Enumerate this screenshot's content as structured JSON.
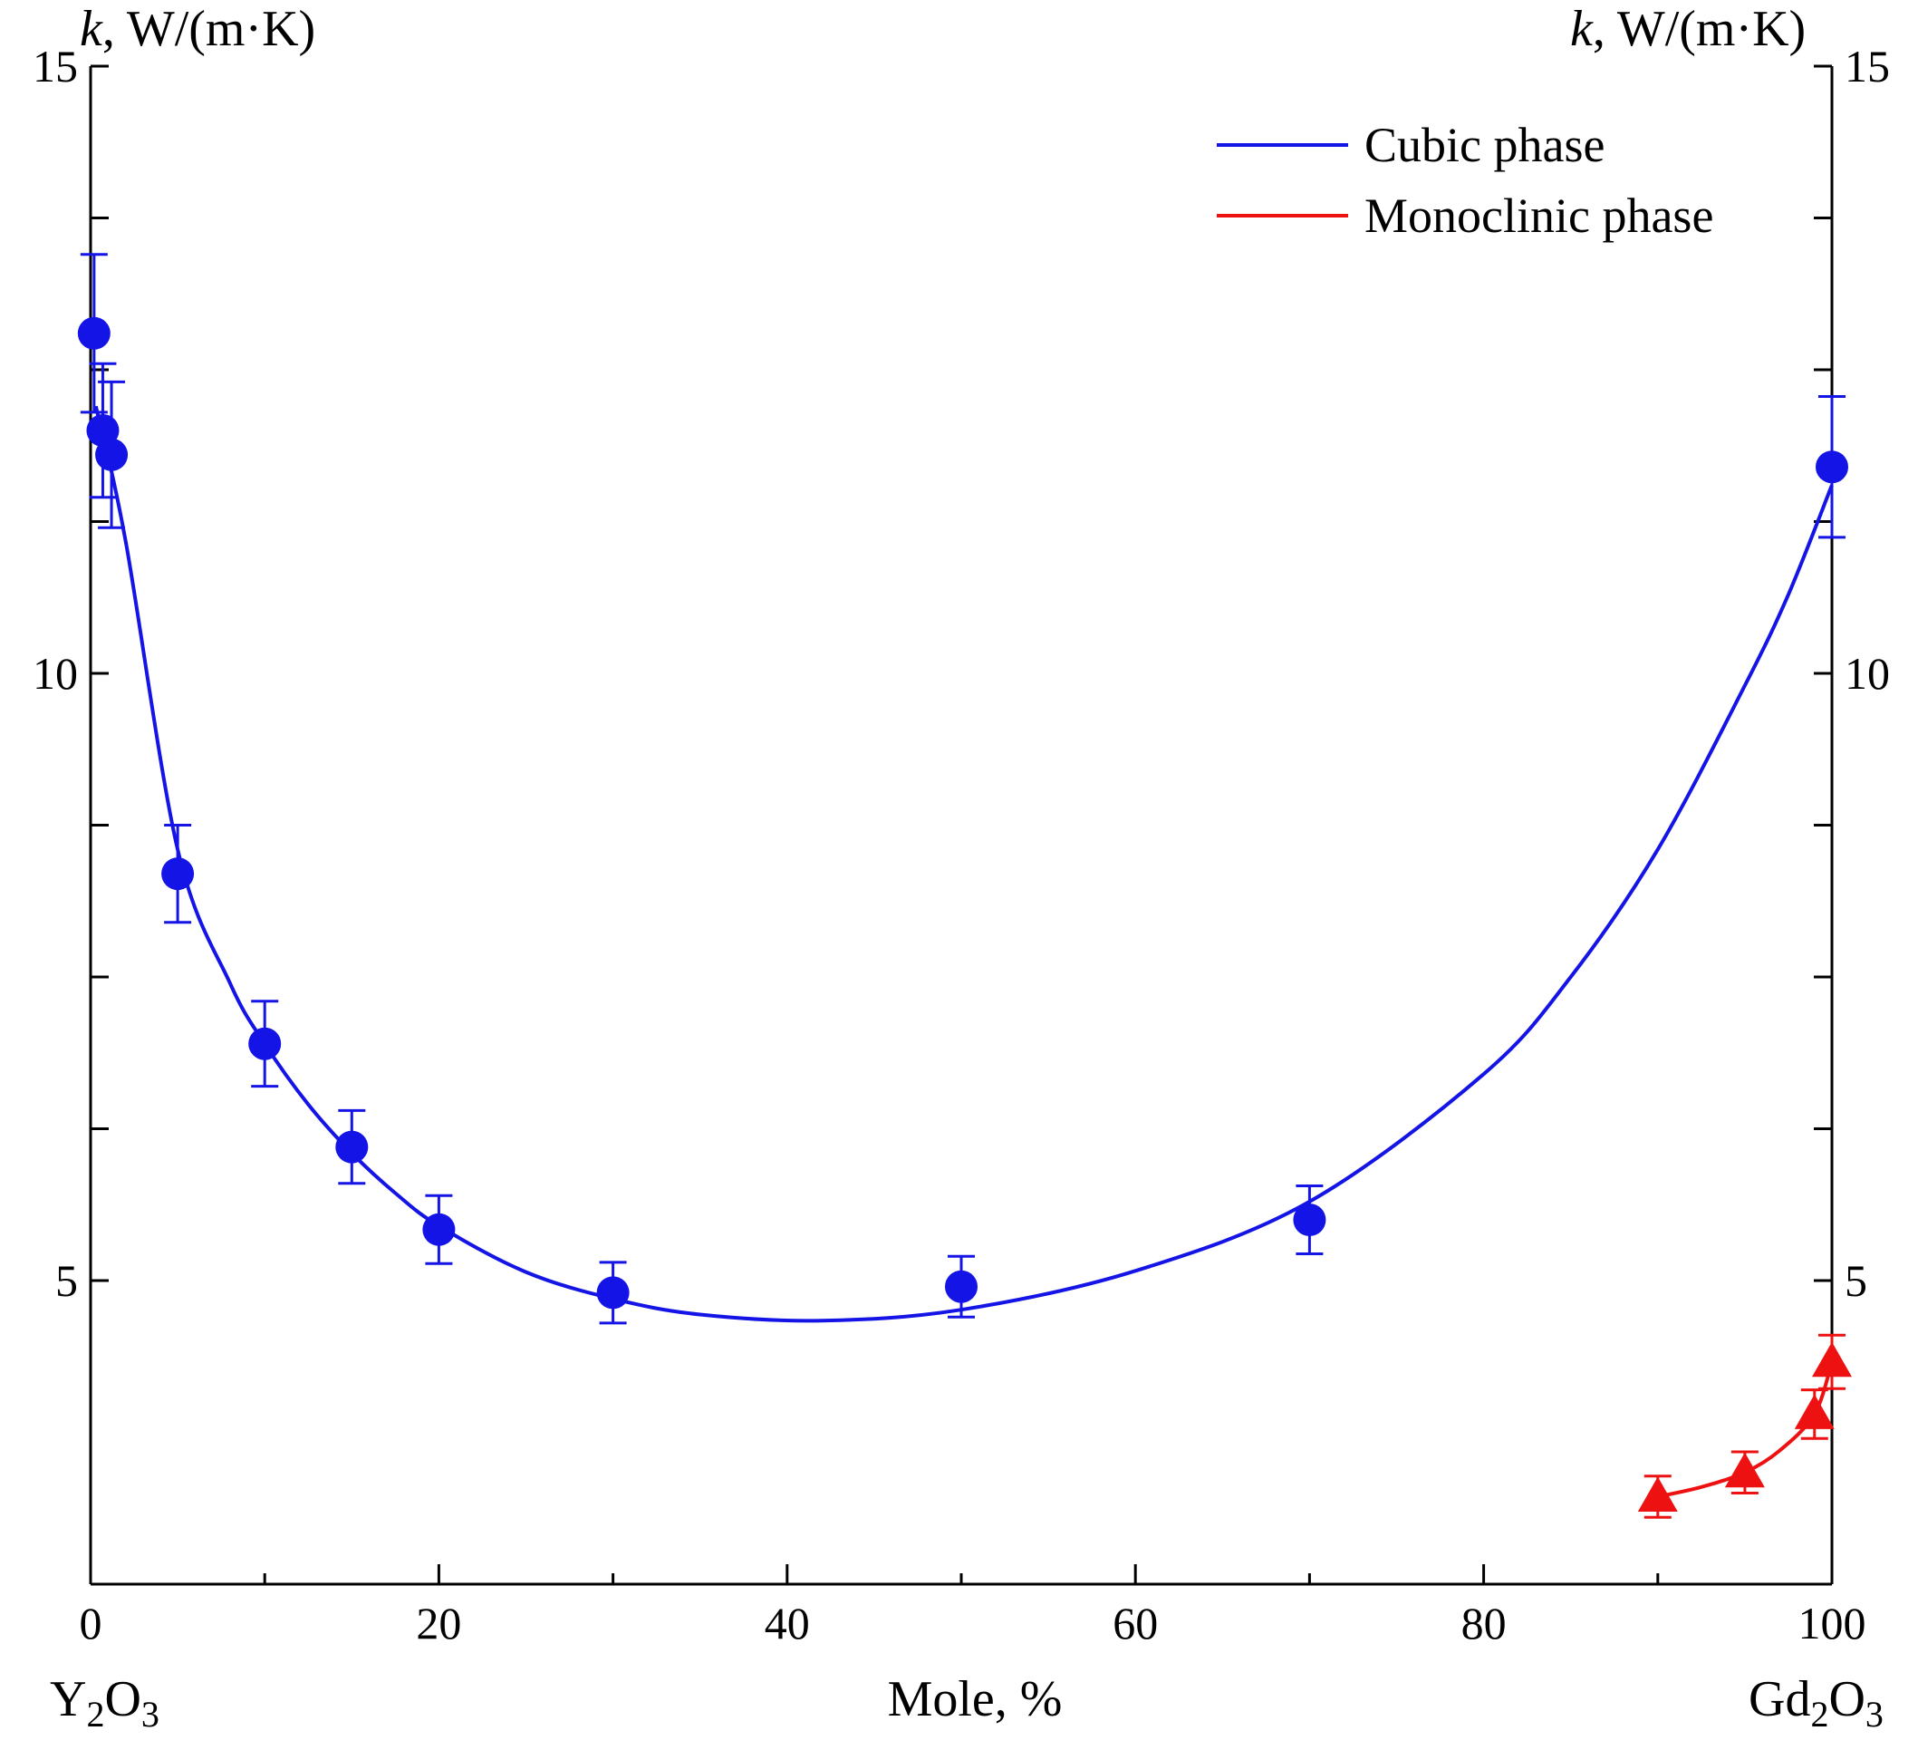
{
  "chart_data": {
    "type": "scatter",
    "title": "",
    "xlabel": "Mole, %",
    "x_left_label": {
      "base": "Y",
      "sub1": "2",
      "mid": "O",
      "sub2": "3"
    },
    "x_right_label": {
      "base": "Gd",
      "sub1": "2",
      "mid": "O",
      "sub2": "3"
    },
    "ylabel_left": {
      "italic": "k",
      "rest": ", W/(m·K)"
    },
    "ylabel_right": {
      "italic": "k",
      "rest": ", W/(m·K)"
    },
    "xlim": [
      0,
      100
    ],
    "ylim": [
      2.5,
      15
    ],
    "x_ticks": [
      0,
      20,
      40,
      60,
      80,
      100
    ],
    "x_minor_ticks": [
      10,
      30,
      50,
      70,
      90
    ],
    "y_ticks_labeled": [
      5,
      10,
      15
    ],
    "y_ticks_all": [
      5,
      6.25,
      7.5,
      8.75,
      10,
      11.25,
      12.5,
      13.75,
      15
    ],
    "legend": {
      "position": "top-right"
    },
    "series": [
      {
        "name": "Cubic phase",
        "color": "#1414e6",
        "marker": "circle",
        "points": [
          {
            "x": 0.2,
            "y": 12.8,
            "err": 0.65
          },
          {
            "x": 0.7,
            "y": 12.0,
            "err": 0.55
          },
          {
            "x": 1.2,
            "y": 11.8,
            "err": 0.6
          },
          {
            "x": 5,
            "y": 8.35,
            "err": 0.4
          },
          {
            "x": 10,
            "y": 6.95,
            "err": 0.35
          },
          {
            "x": 15,
            "y": 6.1,
            "err": 0.3
          },
          {
            "x": 20,
            "y": 5.42,
            "err": 0.28
          },
          {
            "x": 30,
            "y": 4.9,
            "err": 0.25
          },
          {
            "x": 50,
            "y": 4.95,
            "err": 0.25
          },
          {
            "x": 70,
            "y": 5.5,
            "err": 0.28
          },
          {
            "x": 100,
            "y": 11.7,
            "err": 0.58
          }
        ],
        "fit": [
          {
            "x": 0.3,
            "y": 12.2
          },
          {
            "x": 2,
            "y": 11.1
          },
          {
            "x": 5,
            "y": 8.55
          },
          {
            "x": 8,
            "y": 7.45
          },
          {
            "x": 10,
            "y": 6.95
          },
          {
            "x": 12.5,
            "y": 6.45
          },
          {
            "x": 15,
            "y": 6.05
          },
          {
            "x": 17.5,
            "y": 5.72
          },
          {
            "x": 20,
            "y": 5.45
          },
          {
            "x": 25,
            "y": 5.07
          },
          {
            "x": 30,
            "y": 4.85
          },
          {
            "x": 35,
            "y": 4.72
          },
          {
            "x": 42,
            "y": 4.67
          },
          {
            "x": 50,
            "y": 4.76
          },
          {
            "x": 60,
            "y": 5.08
          },
          {
            "x": 70,
            "y": 5.65
          },
          {
            "x": 80,
            "y": 6.7
          },
          {
            "x": 85,
            "y": 7.5
          },
          {
            "x": 90,
            "y": 8.55
          },
          {
            "x": 95,
            "y": 9.9
          },
          {
            "x": 97.5,
            "y": 10.65
          },
          {
            "x": 100,
            "y": 11.55
          }
        ]
      },
      {
        "name": "Monoclinic phase",
        "color": "#ee1111",
        "marker": "triangle",
        "points": [
          {
            "x": 90,
            "y": 3.22,
            "err": 0.17
          },
          {
            "x": 95,
            "y": 3.42,
            "err": 0.17
          },
          {
            "x": 99,
            "y": 3.9,
            "err": 0.2
          },
          {
            "x": 100,
            "y": 4.33,
            "err": 0.22
          }
        ],
        "fit": [
          {
            "x": 90,
            "y": 3.22
          },
          {
            "x": 92.5,
            "y": 3.3
          },
          {
            "x": 95,
            "y": 3.42
          },
          {
            "x": 97,
            "y": 3.6
          },
          {
            "x": 99,
            "y": 3.9
          },
          {
            "x": 100,
            "y": 4.33
          }
        ]
      }
    ]
  }
}
